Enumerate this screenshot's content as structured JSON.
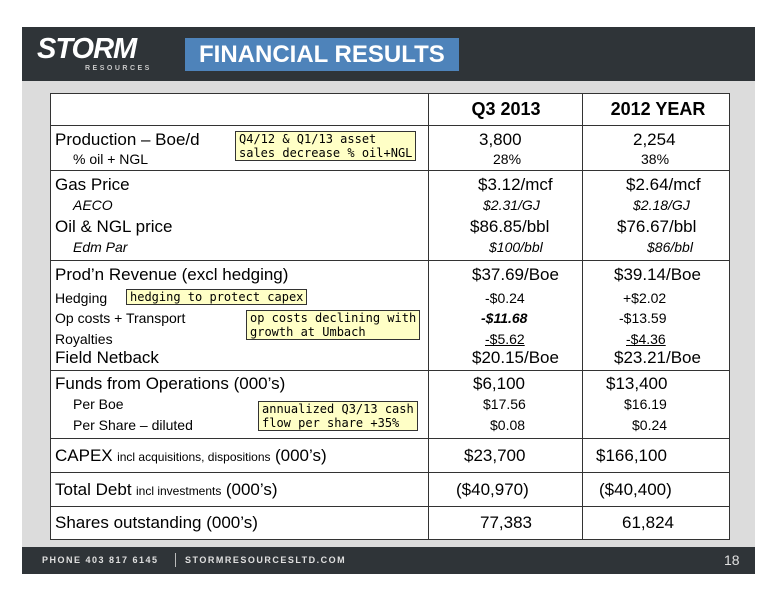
{
  "logo": {
    "main": "STORM",
    "sub": "RESOURCES"
  },
  "title": "FINANCIAL RESULTS",
  "columns": {
    "q3": "Q3 2013",
    "year": "2012 YEAR"
  },
  "rows": {
    "production": {
      "label": "Production – Boe/d",
      "q3": "3,800",
      "year": "2,254"
    },
    "oil_pct": {
      "label": "% oil + NGL",
      "q3": "28%",
      "year": "38%"
    },
    "gas_price": {
      "label": "Gas Price",
      "q3": "$3.12/mcf",
      "year": "$2.64/mcf"
    },
    "aeco": {
      "label": "AECO",
      "q3": "$2.31/GJ",
      "year": "$2.18/GJ"
    },
    "oil_price": {
      "label": "Oil & NGL price",
      "q3": "$86.85/bbl",
      "year": "$76.67/bbl"
    },
    "edm_par": {
      "label": "Edm Par",
      "q3": "$100/bbl",
      "year": "$86/bbl"
    },
    "prod_revenue": {
      "label": "Prod’n Revenue (excl hedging)",
      "q3": "$37.69/Boe",
      "year": "$39.14/Boe"
    },
    "hedging": {
      "label": "Hedging",
      "q3": "-$0.24",
      "year": "+$2.02"
    },
    "op_costs": {
      "label": "Op costs + Transport",
      "q3": "-$11.68",
      "year": "-$13.59"
    },
    "royalties": {
      "label": "Royalties",
      "q3": "-$5.62",
      "year": "-$4.36"
    },
    "field_netback": {
      "label": "Field Netback",
      "q3": "$20.15/Boe",
      "year": "$23.21/Boe"
    },
    "ffo": {
      "label": "Funds from Operations (000’s)",
      "q3": "$6,100",
      "year": "$13,400"
    },
    "per_boe": {
      "label": "Per Boe",
      "q3": "$17.56",
      "year": "$16.19"
    },
    "per_share": {
      "label": "Per Share – diluted",
      "q3": "$0.08",
      "year": "$0.24"
    },
    "capex": {
      "label_main": "CAPEX",
      "label_small": "incl acquisitions, dispositions",
      "label_end": "(000’s)",
      "q3": "$23,700",
      "year": "$166,100"
    },
    "debt": {
      "label_main": "Total Debt",
      "label_small": "incl investments",
      "label_end": "(000’s)",
      "q3": "($40,970)",
      "year": "($40,400)"
    },
    "shares": {
      "label": "Shares outstanding (000’s)",
      "q3": "77,383",
      "year": "61,824"
    }
  },
  "notes": {
    "asset_sales": [
      "Q4/12 & Q1/13 asset",
      "sales decrease % oil+NGL"
    ],
    "hedging": "hedging to protect capex",
    "op_costs": [
      "op costs declining with",
      "growth at Umbach"
    ],
    "cash_flow": [
      "annualized Q3/13 cash",
      "flow per share +35%"
    ]
  },
  "footer": {
    "phone": "PHONE 403 817 6145",
    "website": "STORMRESOURCESLTD.COM",
    "page": "18"
  }
}
